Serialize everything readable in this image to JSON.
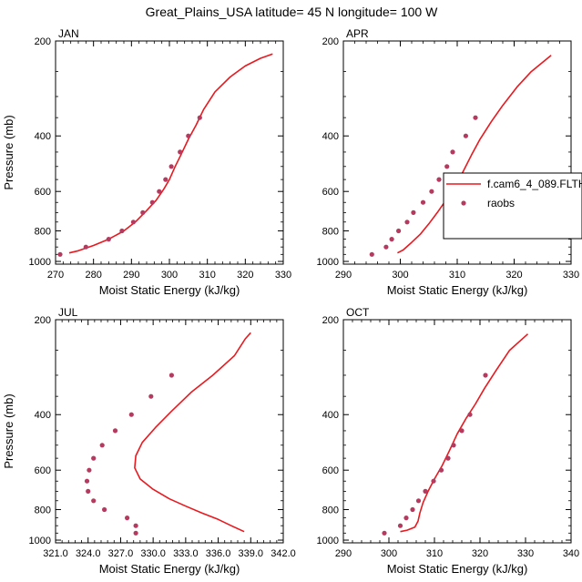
{
  "figure": {
    "title": "Great_Plains_USA  latitude= 45 N longitude= 100 W"
  },
  "legend": {
    "model_label": "f.cam6_4_089.FLTH",
    "obs_label": "raobs",
    "model_color": "#e8191f",
    "obs_color": "#b53a5f"
  },
  "chart_data": [
    {
      "type": "scatter",
      "panel_label": "JAN",
      "xlabel": "Moist Static Energy (kJ/kg)",
      "ylabel": "Pressure (mb)",
      "xlim": [
        270,
        330
      ],
      "ylim": [
        1020,
        200
      ],
      "y_scale": "log",
      "xticks": [
        270,
        280,
        290,
        300,
        310,
        320,
        330
      ],
      "xtick_labels": [
        "270",
        "280",
        "290",
        "300",
        "310",
        "320",
        "330"
      ],
      "yticks": [
        200,
        400,
        600,
        800,
        1000
      ],
      "series": [
        {
          "kind": "line",
          "points": [
            [
              273.6,
              940
            ],
            [
              276,
              925
            ],
            [
              280,
              890
            ],
            [
              284,
              850
            ],
            [
              288,
              800
            ],
            [
              291,
              750
            ],
            [
              294,
              690
            ],
            [
              296.5,
              640
            ],
            [
              298.5,
              590
            ],
            [
              300,
              550
            ],
            [
              301.5,
              500
            ],
            [
              303,
              460
            ],
            [
              305,
              410
            ],
            [
              307,
              370
            ],
            [
              309,
              330
            ],
            [
              312,
              290
            ],
            [
              316,
              260
            ],
            [
              320,
              240
            ],
            [
              324,
              227
            ],
            [
              327.2,
              220
            ]
          ]
        },
        {
          "kind": "markers",
          "points": [
            [
              271.2,
              950
            ],
            [
              278,
              900
            ],
            [
              284,
              850
            ],
            [
              287.5,
              800
            ],
            [
              290.5,
              750
            ],
            [
              293,
              700
            ],
            [
              295.5,
              650
            ],
            [
              297.3,
              600
            ],
            [
              299,
              550
            ],
            [
              300.5,
              500
            ],
            [
              302.8,
              450
            ],
            [
              305,
              400
            ],
            [
              308,
              350
            ]
          ]
        }
      ]
    },
    {
      "type": "scatter",
      "panel_label": "APR",
      "xlabel": "Moist Static Energy (kJ/kg)",
      "ylabel": "",
      "xlim": [
        290,
        330
      ],
      "ylim": [
        1020,
        200
      ],
      "y_scale": "log",
      "xticks": [
        290,
        300,
        310,
        320,
        330
      ],
      "xtick_labels": [
        "290",
        "300",
        "310",
        "320",
        "330"
      ],
      "yticks": [
        200,
        400,
        600,
        800,
        1000
      ],
      "series": [
        {
          "kind": "line",
          "points": [
            [
              299.5,
              940
            ],
            [
              300.5,
              920
            ],
            [
              302,
              870
            ],
            [
              303.5,
              820
            ],
            [
              305,
              760
            ],
            [
              306.5,
              700
            ],
            [
              308,
              640
            ],
            [
              309.5,
              580
            ],
            [
              311,
              520
            ],
            [
              312.5,
              460
            ],
            [
              314,
              410
            ],
            [
              316,
              360
            ],
            [
              318,
              320
            ],
            [
              320.5,
              280
            ],
            [
              323,
              250
            ],
            [
              326.5,
              222
            ]
          ]
        },
        {
          "kind": "markers",
          "points": [
            [
              295,
              950
            ],
            [
              297.5,
              900
            ],
            [
              298.5,
              850
            ],
            [
              299.7,
              800
            ],
            [
              301.2,
              750
            ],
            [
              302.3,
              700
            ],
            [
              304,
              650
            ],
            [
              305.5,
              600
            ],
            [
              306.8,
              550
            ],
            [
              308.2,
              500
            ],
            [
              309.2,
              450
            ],
            [
              311.5,
              400
            ],
            [
              313.2,
              350
            ]
          ]
        }
      ]
    },
    {
      "type": "scatter",
      "panel_label": "JUL",
      "xlabel": "Moist Static Energy (kJ/kg)",
      "ylabel": "Pressure (mb)",
      "xlim": [
        321,
        342
      ],
      "ylim": [
        1020,
        200
      ],
      "y_scale": "log",
      "xticks": [
        321,
        324,
        327,
        330,
        333,
        336,
        339,
        342
      ],
      "xtick_labels": [
        "321.0",
        "324.0",
        "327.0",
        "330.0",
        "333.0",
        "336.0",
        "339.0",
        "342.0"
      ],
      "yticks": [
        200,
        400,
        600,
        800,
        1000
      ],
      "series": [
        {
          "kind": "line",
          "points": [
            [
              338.4,
              940
            ],
            [
              337.2,
              900
            ],
            [
              336,
              860
            ],
            [
              334.5,
              820
            ],
            [
              333,
              780
            ],
            [
              331.5,
              740
            ],
            [
              330,
              690
            ],
            [
              328.8,
              640
            ],
            [
              328.3,
              590
            ],
            [
              328.4,
              540
            ],
            [
              329,
              490
            ],
            [
              330.2,
              440
            ],
            [
              331.7,
              390
            ],
            [
              333.5,
              340
            ],
            [
              335.5,
              300
            ],
            [
              337.5,
              260
            ],
            [
              338.5,
              230
            ],
            [
              339,
              220
            ]
          ]
        },
        {
          "kind": "markers",
          "points": [
            [
              328.4,
              950
            ],
            [
              328.4,
              900
            ],
            [
              327.6,
              850
            ],
            [
              325.5,
              800
            ],
            [
              324.5,
              750
            ],
            [
              324,
              700
            ],
            [
              323.9,
              650
            ],
            [
              324.1,
              600
            ],
            [
              324.5,
              550
            ],
            [
              325.3,
              500
            ],
            [
              326.5,
              450
            ],
            [
              328,
              400
            ],
            [
              329.8,
              350
            ],
            [
              331.7,
              300
            ]
          ]
        }
      ]
    },
    {
      "type": "scatter",
      "panel_label": "OCT",
      "xlabel": "Moist Static Energy (kJ/kg)",
      "ylabel": "",
      "xlim": [
        290,
        340
      ],
      "ylim": [
        1020,
        200
      ],
      "y_scale": "log",
      "xticks": [
        290,
        300,
        310,
        320,
        330,
        340
      ],
      "xtick_labels": [
        "290",
        "300",
        "310",
        "320",
        "330",
        "340"
      ],
      "yticks": [
        200,
        400,
        600,
        800,
        1000
      ],
      "series": [
        {
          "kind": "line",
          "points": [
            [
              302.5,
              940
            ],
            [
              304,
              930
            ],
            [
              305.7,
              910
            ],
            [
              306.4,
              870
            ],
            [
              306.8,
              820
            ],
            [
              307.5,
              760
            ],
            [
              308.6,
              700
            ],
            [
              310,
              640
            ],
            [
              311.7,
              580
            ],
            [
              313.3,
              520
            ],
            [
              315,
              460
            ],
            [
              317,
              410
            ],
            [
              319,
              370
            ],
            [
              321,
              330
            ],
            [
              323.5,
              290
            ],
            [
              326.5,
              250
            ],
            [
              330.5,
              222
            ]
          ]
        },
        {
          "kind": "markers",
          "points": [
            [
              299,
              950
            ],
            [
              302.5,
              900
            ],
            [
              303.8,
              850
            ],
            [
              305.2,
              800
            ],
            [
              306.5,
              750
            ],
            [
              308,
              700
            ],
            [
              309.8,
              650
            ],
            [
              311.5,
              600
            ],
            [
              313,
              550
            ],
            [
              314.2,
              500
            ],
            [
              316,
              450
            ],
            [
              317.8,
              400
            ],
            [
              321.2,
              300
            ]
          ]
        }
      ]
    }
  ]
}
